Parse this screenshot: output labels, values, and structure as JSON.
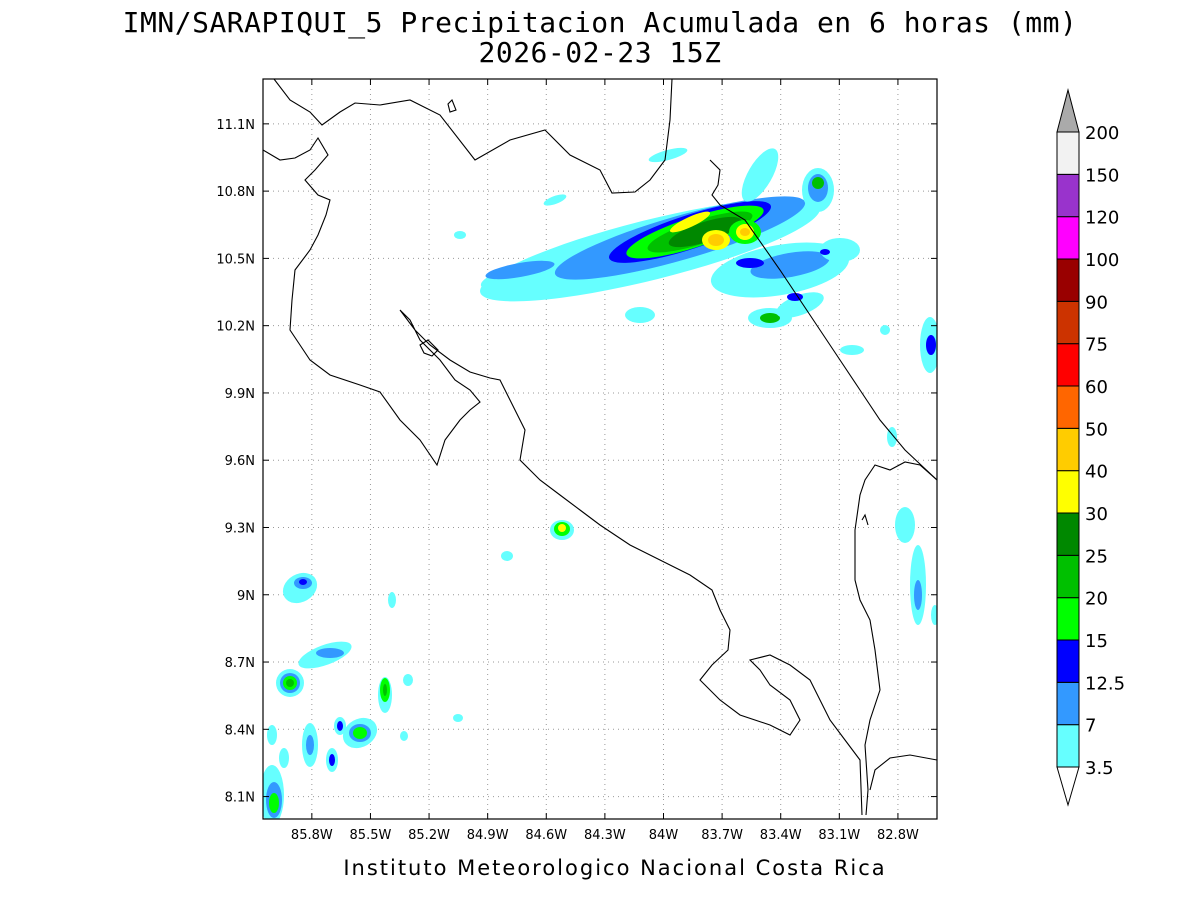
{
  "header": {
    "title_line1": "IMN/SARAPIQUI_5 Precipitacion Acumulada en 6 horas (mm)",
    "title_line2": "2026-02-23 15Z"
  },
  "footer": {
    "credit": "Instituto Meteorologico Nacional Costa Rica"
  },
  "map": {
    "lon_range": [
      -86.05,
      -82.6
    ],
    "lat_range": [
      8.0,
      11.3
    ],
    "lon_ticks": [
      {
        "value": -85.8,
        "label": "85.8W"
      },
      {
        "value": -85.5,
        "label": "85.5W"
      },
      {
        "value": -85.2,
        "label": "85.2W"
      },
      {
        "value": -84.9,
        "label": "84.9W"
      },
      {
        "value": -84.6,
        "label": "84.6W"
      },
      {
        "value": -84.3,
        "label": "84.3W"
      },
      {
        "value": -84.0,
        "label": "84W"
      },
      {
        "value": -83.7,
        "label": "83.7W"
      },
      {
        "value": -83.4,
        "label": "83.4W"
      },
      {
        "value": -83.1,
        "label": "83.1W"
      },
      {
        "value": -82.8,
        "label": "82.8W"
      }
    ],
    "lat_ticks": [
      {
        "value": 11.1,
        "label": "11.1N"
      },
      {
        "value": 10.8,
        "label": "10.8N"
      },
      {
        "value": 10.5,
        "label": "10.5N"
      },
      {
        "value": 10.2,
        "label": "10.2N"
      },
      {
        "value": 9.9,
        "label": "9.9N"
      },
      {
        "value": 9.6,
        "label": "9.6N"
      },
      {
        "value": 9.3,
        "label": "9.3N"
      },
      {
        "value": 9.0,
        "label": "9N"
      },
      {
        "value": 8.7,
        "label": "8.7N"
      },
      {
        "value": 8.4,
        "label": "8.4N"
      },
      {
        "value": 8.1,
        "label": "8.1N"
      }
    ],
    "grid": "dotted"
  },
  "colorbar": {
    "levels": [
      {
        "label": "3.5",
        "color": "#66ffff"
      },
      {
        "label": "7",
        "color": "#3399ff"
      },
      {
        "label": "12.5",
        "color": "#0000ff"
      },
      {
        "label": "15",
        "color": "#00ff00"
      },
      {
        "label": "20",
        "color": "#00c000"
      },
      {
        "label": "25",
        "color": "#008800"
      },
      {
        "label": "30",
        "color": "#ffff00"
      },
      {
        "label": "40",
        "color": "#ffcc00"
      },
      {
        "label": "50",
        "color": "#ff6600"
      },
      {
        "label": "60",
        "color": "#ff0000"
      },
      {
        "label": "75",
        "color": "#cc3300"
      },
      {
        "label": "90",
        "color": "#990000"
      },
      {
        "label": "100",
        "color": "#ff00ff"
      },
      {
        "label": "120",
        "color": "#9933cc"
      },
      {
        "label": "150",
        "color": "#f2f2f2"
      },
      {
        "label": "200",
        "color": "#aaaaaa"
      }
    ]
  }
}
